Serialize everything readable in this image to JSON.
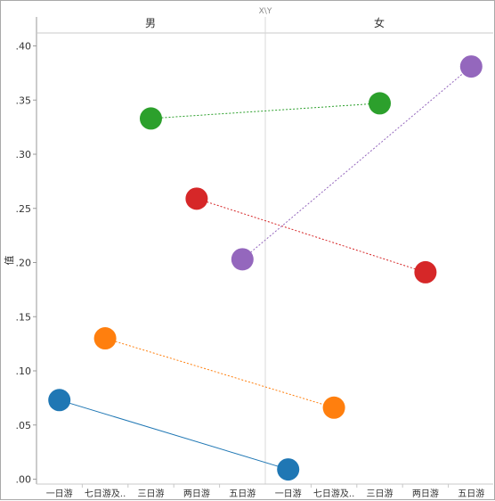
{
  "chart_data": {
    "type": "line",
    "top_label": "X\\Y",
    "ylabel": "值",
    "ylim": [
      0,
      0.41
    ],
    "yticks": [
      0.0,
      0.05,
      0.1,
      0.15,
      0.2,
      0.25,
      0.3,
      0.35,
      0.4
    ],
    "ytick_labels": [
      ".00",
      ".05",
      ".10",
      ".15",
      ".20",
      ".25",
      ".30",
      ".35",
      ".40"
    ],
    "panels": [
      {
        "label": "男",
        "categories": [
          "一日游",
          "七日游及..",
          "三日游",
          "两日游",
          "五日游"
        ]
      },
      {
        "label": "女",
        "categories": [
          "一日游",
          "七日游及..",
          "三日游",
          "两日游",
          "五日游"
        ]
      }
    ],
    "series": [
      {
        "color": "#1f77b4",
        "dash": "",
        "points": [
          {
            "panel": 0,
            "index": 0,
            "value": 0.073
          },
          {
            "panel": 1,
            "index": 0,
            "value": 0.009
          }
        ]
      },
      {
        "color": "#ff7f0e",
        "dash": "2,2",
        "points": [
          {
            "panel": 0,
            "index": 1,
            "value": 0.13
          },
          {
            "panel": 1,
            "index": 1,
            "value": 0.066
          }
        ]
      },
      {
        "color": "#2ca02c",
        "dash": "2,2",
        "points": [
          {
            "panel": 0,
            "index": 2,
            "value": 0.333
          },
          {
            "panel": 1,
            "index": 2,
            "value": 0.347
          }
        ]
      },
      {
        "color": "#d62728",
        "dash": "2,2",
        "points": [
          {
            "panel": 0,
            "index": 3,
            "value": 0.259
          },
          {
            "panel": 1,
            "index": 3,
            "value": 0.191
          }
        ]
      },
      {
        "color": "#9467bd",
        "dash": "2,2",
        "points": [
          {
            "panel": 0,
            "index": 4,
            "value": 0.203
          },
          {
            "panel": 1,
            "index": 4,
            "value": 0.381
          }
        ]
      }
    ]
  }
}
